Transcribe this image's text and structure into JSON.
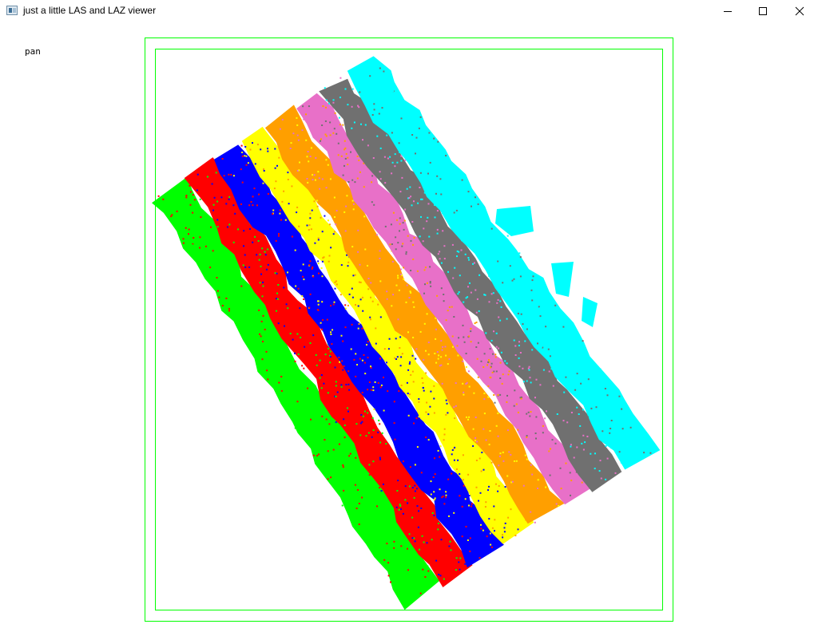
{
  "window": {
    "title": "just a little LAS and LAZ viewer",
    "buttons": {
      "minimize_icon": "minimize-icon",
      "maximize_icon": "maximize-icon",
      "close_icon": "close-icon"
    }
  },
  "viewer": {
    "mode_label": "pan",
    "bounding_box_color": "#00ff00",
    "point_colors": [
      "#00ff00",
      "#ff0000",
      "#0000ff",
      "#ffff00",
      "#ff9f00",
      "#e870c8",
      "#707070",
      "#00ffff"
    ]
  }
}
